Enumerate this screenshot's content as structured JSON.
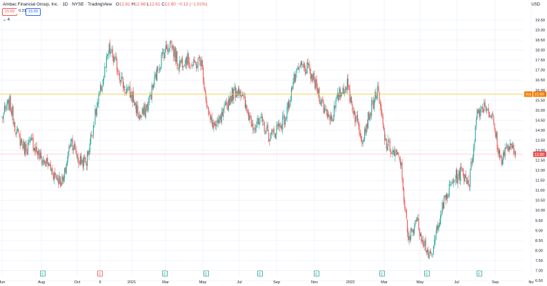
{
  "header": {
    "symbol_name": "Ambac Financial Group, Inc.",
    "interval": "1D",
    "exchange": "NYSE",
    "source": "TradingView",
    "ohlc": {
      "o_label": "O",
      "o": "12.81",
      "h_label": "H",
      "h": "12.98",
      "l_label": "L",
      "l": "12.61",
      "c_label": "C",
      "c": "12.80",
      "change": "−0.13 (−1.01%)"
    }
  },
  "trade": {
    "sell_price": "15.69",
    "spread": "0.31",
    "buy_price": "16.00"
  },
  "volume_toggle": "⌄ 4",
  "currency": "USD",
  "price_axis": {
    "labels": [
      "19.50",
      "19.00",
      "18.50",
      "18.00",
      "17.50",
      "17.00",
      "16.50",
      "16.00",
      "15.50",
      "15.00",
      "14.50",
      "14.00",
      "13.50",
      "13.00",
      "12.50",
      "12.00",
      "11.50",
      "11.00",
      "10.50",
      "10.00",
      "9.50",
      "9.00",
      "8.50",
      "8.00",
      "7.50",
      "7.00",
      "6.50"
    ],
    "values": [
      19.5,
      19.0,
      18.5,
      18.0,
      17.5,
      17.0,
      16.5,
      16.0,
      15.5,
      15.0,
      14.5,
      14.0,
      13.5,
      13.0,
      12.5,
      12.0,
      11.5,
      11.0,
      10.5,
      10.0,
      9.5,
      9.0,
      8.5,
      8.0,
      7.5,
      7.0,
      6.5
    ]
  },
  "time_axis": {
    "labels": [
      "Jun",
      "Aug",
      "Oct",
      "9",
      "2021",
      "Mar",
      "May",
      "Jul",
      "Sep",
      "Nov",
      "2022",
      "Mar",
      "May",
      "Jul",
      "Sep",
      "No"
    ]
  },
  "markers": {
    "ask_label": "Ask",
    "ask_value": "15.80",
    "ask_price": 15.8,
    "last_value": "12.80",
    "last_price": 12.8,
    "event_glyphs": [
      "E",
      "E",
      "E",
      "E",
      "E",
      "E",
      "E",
      "E",
      "E",
      "E",
      "E",
      "E"
    ],
    "event_colors": [
      "#26a69a",
      "#26a69a",
      "#ef5350",
      "#26a69a",
      "#26a69a",
      "#26a69a",
      "#26a69a",
      "#26a69a",
      "#26a69a",
      "#26a69a",
      "#26a69a",
      "#26a69a"
    ]
  },
  "colors": {
    "up": "#26a69a",
    "down": "#ef5350",
    "grid": "#f0f3fa",
    "ask_line": "#f7c948",
    "ask_box": "#f57c00",
    "last_line": "#ef5350",
    "axis_text": "#131722"
  },
  "chart_data": {
    "type": "candlestick",
    "title": "Ambac Financial Group, Inc. · 1D · NYSE",
    "ylabel": "USD",
    "ylim": [
      6.5,
      19.5
    ],
    "x_ticks": [
      "Jun",
      "Aug",
      "Oct",
      "9",
      "2021",
      "Mar",
      "May",
      "Jul",
      "Sep",
      "Nov",
      "2022",
      "Mar",
      "May",
      "Jul",
      "Sep",
      "No"
    ],
    "close_path": [
      [
        "Jun 2020",
        14.6
      ],
      [
        "Jun 2020",
        15.4
      ],
      [
        "Jul 2020",
        13.8
      ],
      [
        "Jul 2020",
        13.1
      ],
      [
        "Jul 2020",
        13.4
      ],
      [
        "Aug 2020",
        12.6
      ],
      [
        "Aug 2020",
        12.3
      ],
      [
        "Sep 2020",
        11.7
      ],
      [
        "Sep 2020",
        11.4
      ],
      [
        "Oct 2020",
        13.6
      ],
      [
        "Oct 2020",
        12.5
      ],
      [
        "Nov 2020",
        12.4
      ],
      [
        "Nov 2020",
        14.4
      ],
      [
        "Dec 2020",
        16.2
      ],
      [
        "Dec 2020",
        18.0
      ],
      [
        "Dec 2020",
        17.2
      ],
      [
        "Jan 2021",
        16.1
      ],
      [
        "Jan 2021",
        15.7
      ],
      [
        "Feb 2021",
        14.6
      ],
      [
        "Feb 2021",
        15.2
      ],
      [
        "Mar 2021",
        16.6
      ],
      [
        "Mar 2021",
        17.8
      ],
      [
        "Mar 2021",
        18.4
      ],
      [
        "Apr 2021",
        17.3
      ],
      [
        "Apr 2021",
        17.6
      ],
      [
        "May 2021",
        17.2
      ],
      [
        "May 2021",
        17.5
      ],
      [
        "May 2021",
        14.6
      ],
      [
        "Jun 2021",
        14.1
      ],
      [
        "Jun 2021",
        14.9
      ],
      [
        "Jul 2021",
        15.8
      ],
      [
        "Jul 2021",
        16.1
      ],
      [
        "Aug 2021",
        14.9
      ],
      [
        "Aug 2021",
        14.2
      ],
      [
        "Sep 2021",
        14.4
      ],
      [
        "Sep 2021",
        13.6
      ],
      [
        "Oct 2021",
        14.2
      ],
      [
        "Oct 2021",
        14.6
      ],
      [
        "Nov 2021",
        16.4
      ],
      [
        "Nov 2021",
        17.2
      ],
      [
        "Nov 2021",
        17.0
      ],
      [
        "Dec 2021",
        16.2
      ],
      [
        "Dec 2021",
        15.1
      ],
      [
        "Jan 2022",
        14.6
      ],
      [
        "Jan 2022",
        15.8
      ],
      [
        "Feb 2022",
        16.3
      ],
      [
        "Feb 2022",
        14.8
      ],
      [
        "Mar 2022",
        13.6
      ],
      [
        "Mar 2022",
        14.9
      ],
      [
        "Mar 2022",
        16.0
      ],
      [
        "Apr 2022",
        13.4
      ],
      [
        "Apr 2022",
        12.9
      ],
      [
        "Apr 2022",
        12.5
      ],
      [
        "May 2022",
        8.4
      ],
      [
        "May 2022",
        9.6
      ],
      [
        "Jun 2022",
        8.5
      ],
      [
        "Jun 2022",
        7.5
      ],
      [
        "Jul 2022",
        9.6
      ],
      [
        "Jul 2022",
        10.7
      ],
      [
        "Aug 2022",
        11.6
      ],
      [
        "Aug 2022",
        11.9
      ],
      [
        "Sep 2022",
        11.4
      ],
      [
        "Sep 2022",
        14.9
      ],
      [
        "Sep 2022",
        15.3
      ],
      [
        "Oct 2022",
        14.6
      ],
      [
        "Oct 2022",
        12.5
      ],
      [
        "Oct 2022",
        13.2
      ],
      [
        "Oct 2022",
        12.8
      ]
    ]
  }
}
